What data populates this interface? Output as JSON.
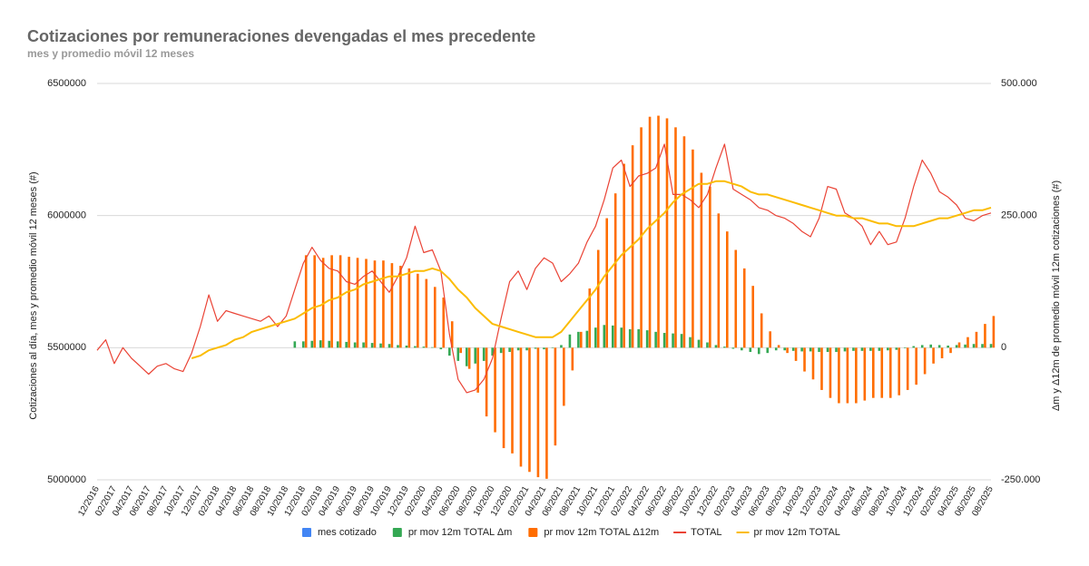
{
  "chart_data": {
    "type": "combo",
    "title": "Cotizaciones por remuneraciones devengadas el mes precedente",
    "subtitle": "mes y promedio móvil 12 meses",
    "y_label": "Cotizaciones al día, mes y promedio móvil 12 meses (#)",
    "y2_label": "Δm y Δ12m de promedio móvil 12m cotizaciones (#)",
    "ylim": [
      5000000,
      6500000
    ],
    "yticks": [
      5000000,
      5500000,
      6000000,
      6500000
    ],
    "y2lim": [
      -250000,
      500000
    ],
    "y2ticks": [
      {
        "value": 500000,
        "label": "500.000"
      },
      {
        "value": 250000,
        "label": "250.000"
      },
      0,
      {
        "value": -250000,
        "label": "-250.000"
      }
    ],
    "grid": true,
    "legend": "bottom",
    "categories": [
      "12/2016",
      null,
      "02/2017",
      null,
      "04/2017",
      null,
      "06/2017",
      null,
      "08/2017",
      null,
      "10/2017",
      null,
      "12/2017",
      null,
      "02/2018",
      null,
      "04/2018",
      null,
      "06/2018",
      null,
      "08/2018",
      null,
      "10/2018",
      null,
      "12/2018",
      null,
      "02/2019",
      null,
      "04/2019",
      null,
      "06/2019",
      null,
      "08/2019",
      null,
      "10/2019",
      null,
      "12/2019",
      null,
      "02/2020",
      null,
      "04/2020",
      null,
      "06/2020",
      null,
      "08/2020",
      null,
      "10/2020",
      null,
      "12/2020",
      null,
      "02/2021",
      null,
      "04/2021",
      null,
      "06/2021",
      null,
      "08/2021",
      null,
      "10/2021",
      null,
      "12/2021",
      null,
      "02/2022",
      null,
      "04/2022",
      null,
      "06/2022",
      null,
      "08/2022",
      null,
      "10/2022",
      null,
      "12/2022",
      null,
      "02/2023",
      null,
      "04/2023",
      null,
      "06/2023",
      null,
      "08/2023",
      null,
      "10/2023",
      null,
      "12/2023",
      null,
      "02/2024",
      null,
      "04/2024",
      null,
      "06/2024",
      null,
      "08/2024",
      null,
      "10/2024",
      null,
      "12/2024",
      null,
      "02/2025",
      null,
      "04/2025",
      null,
      "06/2025",
      null,
      "08/2025"
    ],
    "series": [
      {
        "name": "mes cotizado",
        "type": "bar",
        "axis": "y2",
        "color": "#4285f4",
        "values": [
          null,
          null,
          null,
          null,
          null,
          null,
          null,
          null,
          null,
          null,
          null,
          null,
          null,
          null,
          null,
          null,
          null,
          null,
          null,
          null,
          null,
          null,
          null,
          null,
          null,
          null,
          null,
          null,
          null,
          null,
          null,
          null,
          null,
          null,
          null,
          null,
          null,
          null,
          null,
          null,
          null,
          null,
          null,
          null,
          null,
          null,
          null,
          null,
          null,
          null,
          null,
          null,
          null,
          null,
          null,
          null,
          null,
          null,
          null,
          null,
          null,
          null,
          null,
          null,
          null,
          null,
          null,
          null,
          null,
          null,
          null,
          null,
          null,
          null,
          null,
          null,
          null,
          null,
          null,
          null,
          null,
          null,
          null,
          null,
          null,
          null,
          null,
          null,
          null,
          null,
          null,
          null,
          null,
          null,
          null,
          null,
          null,
          null,
          null,
          null,
          null,
          null,
          null,
          null,
          null
        ]
      },
      {
        "name": "pr mov 12m TOTAL Δm",
        "type": "bar",
        "axis": "y2",
        "color": "#34a853",
        "values": [
          null,
          null,
          null,
          null,
          null,
          null,
          null,
          null,
          null,
          null,
          null,
          null,
          null,
          null,
          null,
          null,
          null,
          null,
          null,
          null,
          null,
          null,
          null,
          12000,
          12000,
          13000,
          14000,
          13000,
          12000,
          11000,
          10000,
          10000,
          9000,
          8000,
          7000,
          5000,
          4000,
          3000,
          2000,
          1000,
          -3000,
          -15000,
          -25000,
          -35000,
          -30000,
          -25000,
          -15000,
          -10000,
          -8000,
          -5000,
          -5000,
          -2000,
          -3000,
          0,
          5000,
          25000,
          30000,
          32000,
          38000,
          43000,
          42000,
          38000,
          35000,
          35000,
          33000,
          30000,
          28000,
          27000,
          26000,
          20000,
          15000,
          10000,
          5000,
          2000,
          -2000,
          -5000,
          -8000,
          -12000,
          -10000,
          -5000,
          -5000,
          -6000,
          -7000,
          -7000,
          -8000,
          -8000,
          -8000,
          -7000,
          -6000,
          -6000,
          -6000,
          -6000,
          -5000,
          -4000,
          -1000,
          3000,
          5000,
          6000,
          5000,
          4000,
          5000,
          6000,
          7000,
          7000,
          7000
        ]
      },
      {
        "name": "pr mov 12m TOTAL Δ12m",
        "type": "bar",
        "axis": "y2",
        "color": "#ff6d01",
        "values": [
          null,
          null,
          null,
          null,
          null,
          null,
          null,
          null,
          null,
          null,
          null,
          null,
          null,
          null,
          null,
          null,
          null,
          null,
          null,
          null,
          null,
          null,
          null,
          null,
          175000,
          175000,
          170000,
          175000,
          175000,
          172000,
          170000,
          168000,
          165000,
          165000,
          160000,
          155000,
          150000,
          140000,
          130000,
          115000,
          95000,
          50000,
          -10000,
          -40000,
          -85000,
          -130000,
          -160000,
          -190000,
          -200000,
          -225000,
          -235000,
          -245000,
          -248000,
          -185000,
          -110000,
          -43000,
          30000,
          112000,
          185000,
          245000,
          292000,
          348000,
          383000,
          417000,
          437000,
          439000,
          434000,
          417000,
          400000,
          375000,
          331000,
          305000,
          254000,
          220000,
          185000,
          150000,
          117000,
          65000,
          31000,
          5000,
          -10000,
          -25000,
          -45000,
          -60000,
          -80000,
          -95000,
          -105000,
          -105000,
          -105000,
          -100000,
          -95000,
          -95000,
          -95000,
          -90000,
          -80000,
          -70000,
          -50000,
          -30000,
          -20000,
          -10000,
          10000,
          20000,
          30000,
          45000,
          60000
        ]
      },
      {
        "name": "TOTAL",
        "type": "line",
        "color": "#ea4335",
        "values": [
          5490000,
          5530000,
          5440000,
          5500000,
          5460000,
          5430000,
          5400000,
          5430000,
          5440000,
          5420000,
          5410000,
          5480000,
          5580000,
          5700000,
          5600000,
          5640000,
          5630000,
          5620000,
          5610000,
          5600000,
          5620000,
          5580000,
          5620000,
          5720000,
          5820000,
          5880000,
          5830000,
          5800000,
          5790000,
          5750000,
          5740000,
          5770000,
          5790000,
          5750000,
          5710000,
          5770000,
          5840000,
          5960000,
          5860000,
          5870000,
          5790000,
          5550000,
          5380000,
          5330000,
          5340000,
          5380000,
          5460000,
          5610000,
          5750000,
          5790000,
          5720000,
          5800000,
          5840000,
          5820000,
          5750000,
          5780000,
          5820000,
          5900000,
          5960000,
          6060000,
          6180000,
          6210000,
          6110000,
          6150000,
          6160000,
          6180000,
          6270000,
          6080000,
          6080000,
          6060000,
          6030000,
          6080000,
          6180000,
          6270000,
          6100000,
          6080000,
          6060000,
          6030000,
          6020000,
          6000000,
          5990000,
          5970000,
          5940000,
          5920000,
          5990000,
          6110000,
          6100000,
          6010000,
          5990000,
          5960000,
          5890000,
          5940000,
          5890000,
          5900000,
          5990000,
          6110000,
          6210000,
          6160000,
          6090000,
          6070000,
          6040000,
          5990000,
          5980000,
          6000000,
          6010000
        ]
      },
      {
        "name": "pr mov 12m TOTAL",
        "type": "line",
        "color": "#fbbc04",
        "values": [
          null,
          null,
          null,
          null,
          null,
          null,
          null,
          null,
          null,
          null,
          null,
          5460000,
          5470000,
          5490000,
          5500000,
          5510000,
          5530000,
          5540000,
          5560000,
          5570000,
          5580000,
          5590000,
          5600000,
          5610000,
          5630000,
          5650000,
          5660000,
          5680000,
          5690000,
          5710000,
          5720000,
          5740000,
          5750000,
          5760000,
          5770000,
          5770000,
          5780000,
          5790000,
          5790000,
          5800000,
          5790000,
          5760000,
          5720000,
          5690000,
          5650000,
          5620000,
          5590000,
          5580000,
          5570000,
          5560000,
          5550000,
          5540000,
          5540000,
          5540000,
          5560000,
          5600000,
          5640000,
          5680000,
          5720000,
          5770000,
          5810000,
          5850000,
          5880000,
          5910000,
          5950000,
          5980000,
          6010000,
          6050000,
          6080000,
          6100000,
          6120000,
          6120000,
          6130000,
          6130000,
          6120000,
          6110000,
          6090000,
          6080000,
          6080000,
          6070000,
          6060000,
          6050000,
          6040000,
          6030000,
          6020000,
          6010000,
          6000000,
          6000000,
          5990000,
          5990000,
          5980000,
          5970000,
          5970000,
          5960000,
          5960000,
          5960000,
          5970000,
          5980000,
          5990000,
          5990000,
          6000000,
          6010000,
          6020000,
          6020000,
          6030000
        ]
      }
    ]
  }
}
